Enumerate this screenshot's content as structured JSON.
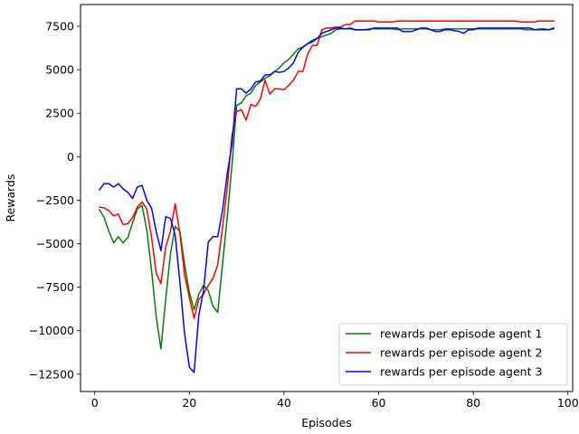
{
  "chart_data": {
    "type": "line",
    "title": "",
    "xlabel": "Episodes",
    "ylabel": "Rewards",
    "xlim": [
      -3,
      101
    ],
    "ylim": [
      -13500,
      8750
    ],
    "xticks": [
      0,
      20,
      40,
      60,
      80,
      100
    ],
    "xtick_labels": [
      "0",
      "20",
      "40",
      "60",
      "80",
      "100"
    ],
    "yticks": [
      -12500,
      -10000,
      -7500,
      -5000,
      -2500,
      0,
      2500,
      5000,
      7500
    ],
    "ytick_labels": [
      "−12500",
      "−10000",
      "−7500",
      "−5000",
      "−2500",
      "0",
      "2500",
      "5000",
      "7500"
    ],
    "grid": false,
    "legend_position": "lower-right",
    "x": [
      1,
      2,
      3,
      4,
      5,
      6,
      7,
      8,
      9,
      10,
      11,
      12,
      13,
      14,
      15,
      16,
      17,
      18,
      19,
      20,
      21,
      22,
      23,
      24,
      25,
      26,
      27,
      28,
      29,
      30,
      31,
      32,
      33,
      34,
      35,
      36,
      37,
      38,
      39,
      40,
      41,
      42,
      43,
      44,
      45,
      46,
      47,
      48,
      49,
      50,
      51,
      52,
      53,
      54,
      55,
      56,
      57,
      58,
      59,
      60,
      61,
      62,
      63,
      64,
      65,
      66,
      67,
      68,
      69,
      70,
      71,
      72,
      73,
      74,
      75,
      76,
      77,
      78,
      79,
      80,
      81,
      82,
      83,
      84,
      85,
      86,
      87,
      88,
      89,
      90,
      91,
      92,
      93,
      94,
      95,
      96,
      97
    ],
    "series": [
      {
        "name": "rewards per episode agent 1",
        "color": "#008000",
        "values": [
          -3050,
          -3500,
          -4300,
          -4950,
          -4600,
          -4950,
          -4650,
          -3800,
          -3000,
          -2800,
          -4200,
          -6500,
          -9200,
          -11050,
          -8200,
          -5600,
          -4000,
          -4300,
          -6200,
          -7800,
          -8800,
          -7900,
          -7400,
          -7700,
          -8600,
          -8950,
          -6200,
          -3500,
          -500,
          2950,
          3100,
          3500,
          3650,
          4100,
          4300,
          4500,
          4650,
          4900,
          5100,
          5400,
          5600,
          5900,
          6200,
          6300,
          6500,
          6700,
          6800,
          6900,
          7000,
          7100,
          7300,
          7350,
          7350,
          7350,
          7300,
          7300,
          7300,
          7350,
          7350,
          7350,
          7350,
          7350,
          7350,
          7300,
          7350,
          7350,
          7350,
          7350,
          7350,
          7350,
          7300,
          7300,
          7300,
          7350,
          7350,
          7350,
          7350,
          7350,
          7350,
          7350,
          7350,
          7350,
          7350,
          7350,
          7350,
          7350,
          7350,
          7350,
          7350,
          7350,
          7300,
          7300,
          7300,
          7350,
          7350,
          7300,
          7350
        ]
      },
      {
        "name": "rewards per episode agent 2",
        "color": "#ff0000",
        "values": [
          -2900,
          -2950,
          -3100,
          -3400,
          -3300,
          -3900,
          -3850,
          -3500,
          -2900,
          -2600,
          -3000,
          -4600,
          -6700,
          -7300,
          -5200,
          -4300,
          -2700,
          -4400,
          -6800,
          -8100,
          -9300,
          -8200,
          -7900,
          -7400,
          -7000,
          -6200,
          -4100,
          -1800,
          1200,
          2600,
          2700,
          2100,
          3000,
          2900,
          3300,
          4400,
          3600,
          3900,
          3900,
          3850,
          4100,
          4400,
          4900,
          4900,
          5900,
          6400,
          6400,
          7300,
          7400,
          7400,
          7450,
          7450,
          7600,
          7600,
          7800,
          7800,
          7800,
          7800,
          7800,
          7750,
          7750,
          7750,
          7750,
          7800,
          7800,
          7800,
          7800,
          7800,
          7800,
          7800,
          7800,
          7800,
          7800,
          7800,
          7800,
          7800,
          7800,
          7800,
          7800,
          7800,
          7800,
          7800,
          7800,
          7800,
          7800,
          7800,
          7800,
          7800,
          7800,
          7750,
          7750,
          7750,
          7750,
          7800,
          7800,
          7800,
          7800
        ]
      },
      {
        "name": "rewards per episode agent 3",
        "color": "#0000ff",
        "values": [
          -1900,
          -1550,
          -1550,
          -1750,
          -1550,
          -1850,
          -2050,
          -2400,
          -1750,
          -1650,
          -2500,
          -2950,
          -4300,
          -5400,
          -3450,
          -3550,
          -4500,
          -7200,
          -10200,
          -12100,
          -12400,
          -9100,
          -7700,
          -4900,
          -4600,
          -4600,
          -3100,
          -1000,
          700,
          3900,
          3900,
          3650,
          3900,
          4300,
          4350,
          4700,
          4700,
          4900,
          4850,
          4900,
          5100,
          5400,
          6000,
          6300,
          6500,
          6600,
          6800,
          7100,
          7200,
          7300,
          7400,
          7400,
          7350,
          7400,
          7300,
          7300,
          7300,
          7300,
          7400,
          7400,
          7400,
          7400,
          7400,
          7400,
          7200,
          7200,
          7200,
          7300,
          7400,
          7400,
          7300,
          7200,
          7200,
          7300,
          7300,
          7250,
          7200,
          7100,
          7300,
          7300,
          7400,
          7400,
          7400,
          7400,
          7400,
          7400,
          7400,
          7400,
          7400,
          7400,
          7400,
          7400,
          7300,
          7300,
          7300,
          7300,
          7400
        ]
      }
    ]
  }
}
